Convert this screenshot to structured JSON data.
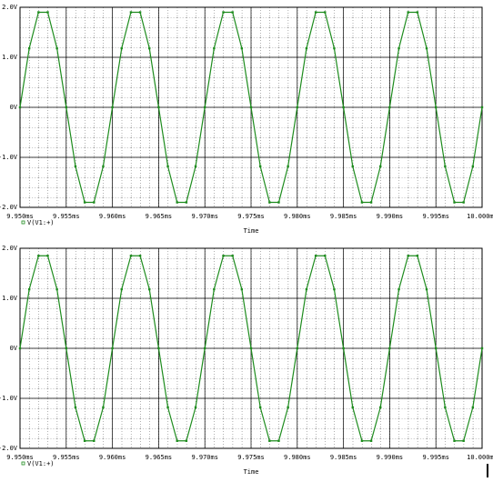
{
  "chart_data": [
    {
      "type": "line",
      "xlabel": "Time",
      "grid": true,
      "x": [
        9.95,
        9.951,
        9.952,
        9.953,
        9.954,
        9.955,
        9.956,
        9.957,
        9.958,
        9.959,
        9.96,
        9.961,
        9.962,
        9.963,
        9.964,
        9.965,
        9.966,
        9.967,
        9.968,
        9.969,
        9.97,
        9.971,
        9.972,
        9.973,
        9.974,
        9.975,
        9.976,
        9.977,
        9.978,
        9.979,
        9.98,
        9.981,
        9.982,
        9.983,
        9.984,
        9.985,
        9.986,
        9.987,
        9.988,
        9.989,
        9.99,
        9.991,
        9.992,
        9.993,
        9.994,
        9.995,
        9.996,
        9.997,
        9.998,
        9.999,
        10
      ],
      "series": [
        {
          "name": "V(V1:+)",
          "color": "#1e8c1e",
          "values": [
            0,
            1.18,
            1.9,
            1.9,
            1.18,
            0,
            -1.18,
            -1.9,
            -1.9,
            -1.18,
            0,
            1.18,
            1.9,
            1.9,
            1.18,
            0,
            -1.18,
            -1.9,
            -1.9,
            -1.18,
            0,
            1.18,
            1.9,
            1.9,
            1.18,
            0,
            -1.18,
            -1.9,
            -1.9,
            -1.18,
            0,
            1.18,
            1.9,
            1.9,
            1.18,
            0,
            -1.18,
            -1.9,
            -1.9,
            -1.18,
            0,
            1.18,
            1.9,
            1.9,
            1.18,
            0,
            -1.18,
            -1.9,
            -1.9,
            -1.18,
            0
          ]
        }
      ],
      "xlim": [
        9.95,
        10
      ],
      "xticks": [
        {
          "value": 9.95,
          "label": "9.950ms"
        },
        {
          "value": 9.955,
          "label": "9.955ms"
        },
        {
          "value": 9.96,
          "label": "9.960ms"
        },
        {
          "value": 9.965,
          "label": "9.965ms"
        },
        {
          "value": 9.97,
          "label": "9.970ms"
        },
        {
          "value": 9.975,
          "label": "9.975ms"
        },
        {
          "value": 9.98,
          "label": "9.980ms"
        },
        {
          "value": 9.985,
          "label": "9.985ms"
        },
        {
          "value": 9.99,
          "label": "9.990ms"
        },
        {
          "value": 9.995,
          "label": "9.995ms"
        },
        {
          "value": 10,
          "label": "10.000ms"
        }
      ],
      "ylim": [
        -2,
        2
      ],
      "yticks": [
        {
          "value": -2,
          "label": "-2.0V"
        },
        {
          "value": -1,
          "label": "-1.0V"
        },
        {
          "value": 0,
          "label": "0V"
        },
        {
          "value": 1,
          "label": "1.0V"
        },
        {
          "value": 2,
          "label": "2.0V"
        }
      ]
    },
    {
      "type": "line",
      "xlabel": "Time",
      "grid": true,
      "x": [
        9.95,
        9.951,
        9.952,
        9.953,
        9.954,
        9.955,
        9.956,
        9.957,
        9.958,
        9.959,
        9.96,
        9.961,
        9.962,
        9.963,
        9.964,
        9.965,
        9.966,
        9.967,
        9.968,
        9.969,
        9.97,
        9.971,
        9.972,
        9.973,
        9.974,
        9.975,
        9.976,
        9.977,
        9.978,
        9.979,
        9.98,
        9.981,
        9.982,
        9.983,
        9.984,
        9.985,
        9.986,
        9.987,
        9.988,
        9.989,
        9.99,
        9.991,
        9.992,
        9.993,
        9.994,
        9.995,
        9.996,
        9.997,
        9.998,
        9.999,
        10
      ],
      "series": [
        {
          "name": "V(V1:+)",
          "color": "#1e8c1e",
          "values": [
            0,
            1.18,
            1.85,
            1.85,
            1.18,
            0,
            -1.18,
            -1.85,
            -1.85,
            -1.18,
            0,
            1.18,
            1.85,
            1.85,
            1.18,
            0,
            -1.18,
            -1.85,
            -1.85,
            -1.18,
            0,
            1.18,
            1.85,
            1.85,
            1.18,
            0,
            -1.18,
            -1.85,
            -1.85,
            -1.18,
            0,
            1.18,
            1.85,
            1.85,
            1.18,
            0,
            -1.18,
            -1.85,
            -1.85,
            -1.18,
            0,
            1.18,
            1.85,
            1.85,
            1.18,
            0,
            -1.18,
            -1.85,
            -1.85,
            -1.18,
            0
          ]
        }
      ],
      "xlim": [
        9.95,
        10
      ],
      "xticks": [
        {
          "value": 9.95,
          "label": "9.950ms"
        },
        {
          "value": 9.955,
          "label": "9.955ms"
        },
        {
          "value": 9.96,
          "label": "9.960ms"
        },
        {
          "value": 9.965,
          "label": "9.965ms"
        },
        {
          "value": 9.97,
          "label": "9.970ms"
        },
        {
          "value": 9.975,
          "label": "9.975ms"
        },
        {
          "value": 9.98,
          "label": "9.980ms"
        },
        {
          "value": 9.985,
          "label": "9.985ms"
        },
        {
          "value": 9.99,
          "label": "9.990ms"
        },
        {
          "value": 9.995,
          "label": "9.995ms"
        },
        {
          "value": 10,
          "label": "10.000ms"
        }
      ],
      "ylim": [
        -2,
        2
      ],
      "yticks": [
        {
          "value": -2,
          "label": "-2.0V"
        },
        {
          "value": -1,
          "label": "-1.0V"
        },
        {
          "value": 0,
          "label": "0V"
        },
        {
          "value": 1,
          "label": "1.0V"
        },
        {
          "value": 2,
          "label": "2.0V"
        }
      ]
    }
  ]
}
